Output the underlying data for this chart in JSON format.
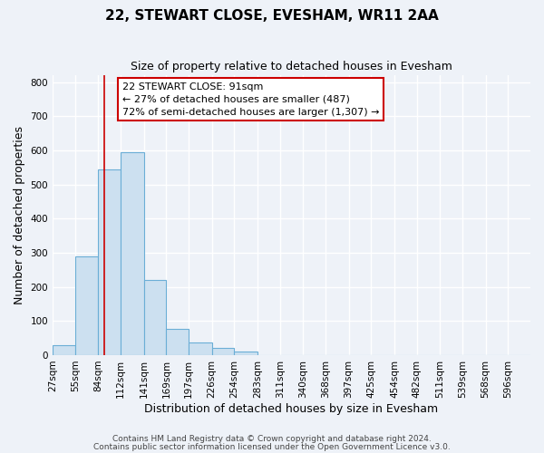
{
  "title": "22, STEWART CLOSE, EVESHAM, WR11 2AA",
  "subtitle": "Size of property relative to detached houses in Evesham",
  "xlabel": "Distribution of detached houses by size in Evesham",
  "ylabel": "Number of detached properties",
  "bin_labels": [
    "27sqm",
    "55sqm",
    "84sqm",
    "112sqm",
    "141sqm",
    "169sqm",
    "197sqm",
    "226sqm",
    "254sqm",
    "283sqm",
    "311sqm",
    "340sqm",
    "368sqm",
    "397sqm",
    "425sqm",
    "454sqm",
    "482sqm",
    "511sqm",
    "539sqm",
    "568sqm",
    "596sqm"
  ],
  "bin_edges": [
    27,
    55,
    84,
    112,
    141,
    169,
    197,
    226,
    254,
    283,
    311,
    340,
    368,
    397,
    425,
    454,
    482,
    511,
    539,
    568,
    596,
    624
  ],
  "bar_heights": [
    28,
    290,
    545,
    595,
    220,
    78,
    37,
    22,
    10,
    0,
    0,
    0,
    0,
    0,
    0,
    0,
    0,
    0,
    0,
    0,
    0
  ],
  "bar_color": "#cce0f0",
  "bar_edge_color": "#6baed6",
  "property_size": 91,
  "vline_color": "#cc0000",
  "annotation_line1": "22 STEWART CLOSE: 91sqm",
  "annotation_line2": "← 27% of detached houses are smaller (487)",
  "annotation_line3": "72% of semi-detached houses are larger (1,307) →",
  "annotation_box_color": "#ffffff",
  "annotation_box_edge": "#cc0000",
  "ylim": [
    0,
    820
  ],
  "yticks": [
    0,
    100,
    200,
    300,
    400,
    500,
    600,
    700,
    800
  ],
  "footer_line1": "Contains HM Land Registry data © Crown copyright and database right 2024.",
  "footer_line2": "Contains public sector information licensed under the Open Government Licence v3.0.",
  "background_color": "#eef2f8",
  "grid_color": "#ffffff",
  "title_fontsize": 11,
  "subtitle_fontsize": 9,
  "axis_label_fontsize": 9,
  "tick_fontsize": 7.5,
  "annotation_fontsize": 8,
  "footer_fontsize": 6.5
}
